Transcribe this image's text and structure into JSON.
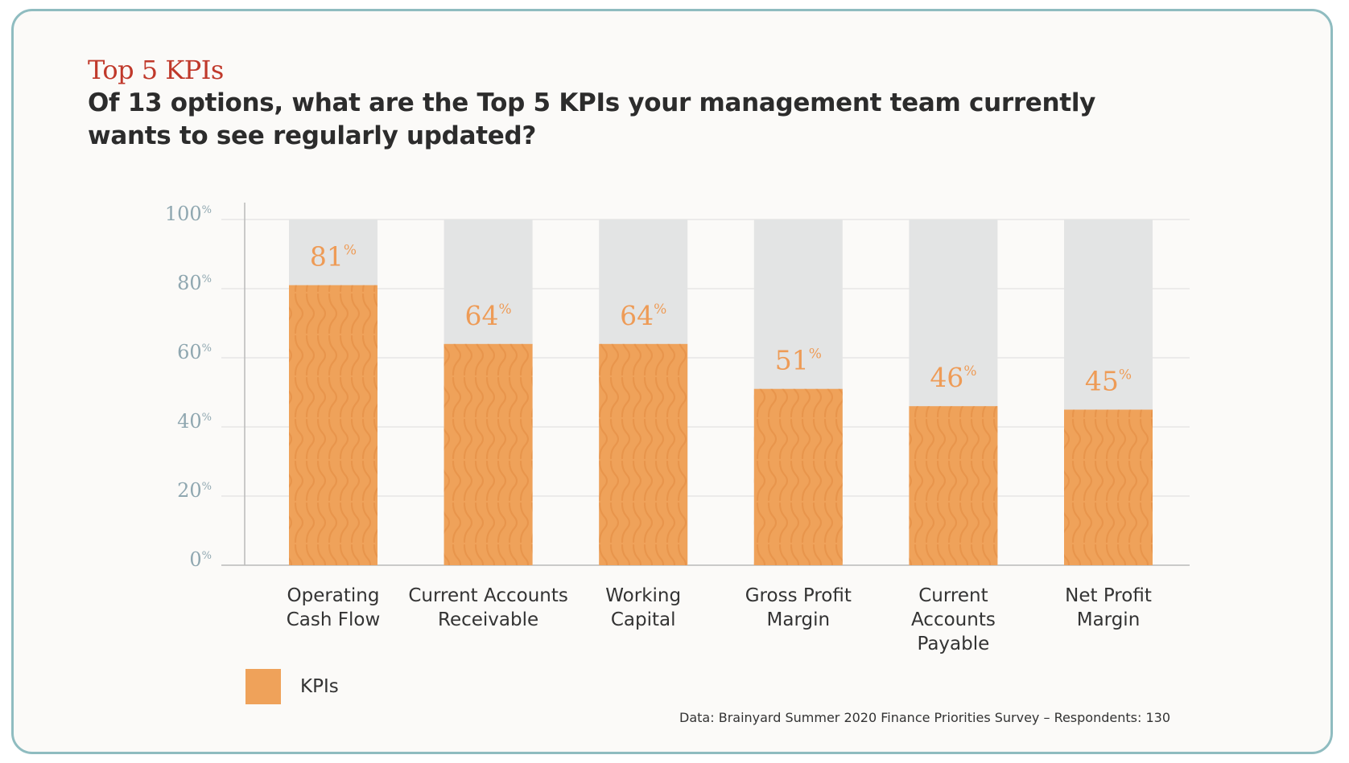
{
  "kicker": "Top 5 KPIs",
  "title": "Of 13 options, what are the Top 5 KPIs your management team currently wants to see regularly updated?",
  "legend": {
    "label": "KPIs"
  },
  "source": "Data: Brainyard Summer 2020 Finance Priorities Survey – Respondents: 130",
  "colors": {
    "bar": "#efa25a",
    "squiggle": "#e38b41",
    "background_bar": "#e3e4e4",
    "value_label": "#ee9b56",
    "axis_label": "#8fa7b0",
    "gridline": "#dcdcdc",
    "accent": "#c0392b"
  },
  "chart_data": {
    "type": "bar",
    "categories": [
      [
        "Operating",
        "Cash Flow"
      ],
      [
        "Current Accounts",
        "Receivable"
      ],
      [
        "Working",
        "Capital"
      ],
      [
        "Gross Profit",
        "Margin"
      ],
      [
        "Current",
        "Accounts",
        "Payable"
      ],
      [
        "Net Profit",
        "Margin"
      ]
    ],
    "series": [
      {
        "name": "KPIs",
        "values": [
          81,
          64,
          64,
          51,
          46,
          45
        ]
      }
    ],
    "value_suffix": "%",
    "yticks": [
      0,
      20,
      40,
      60,
      80,
      100
    ],
    "ylim": [
      0,
      100
    ],
    "grid": true,
    "legend_position": "bottom-left"
  }
}
